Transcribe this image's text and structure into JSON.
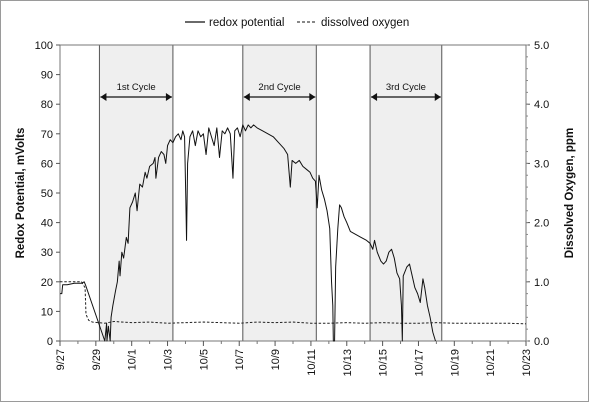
{
  "chart_data": {
    "type": "line",
    "title": "",
    "legend": {
      "placement": "top-center",
      "entries": [
        {
          "name": "redox potential",
          "style": "solid"
        },
        {
          "name": "dissolved oxygen",
          "style": "dashed"
        }
      ]
    },
    "x_axis": {
      "unit": "day",
      "range": [
        0,
        26
      ],
      "tick_values": [
        0,
        2,
        4,
        6,
        8,
        10,
        12,
        14,
        16,
        18,
        20,
        22,
        24,
        26
      ],
      "tick_labels": [
        "9/27",
        "9/29",
        "10/1",
        "10/3",
        "10/5",
        "10/7",
        "10/9",
        "10/11",
        "10/13",
        "10/15",
        "10/17",
        "10/19",
        "10/21",
        "10/23"
      ]
    },
    "y_left": {
      "label": "Redox Potential, mVolts",
      "range": [
        0,
        100
      ],
      "tick_labels": [
        "0",
        "10",
        "20",
        "30",
        "40",
        "50",
        "60",
        "70",
        "80",
        "90",
        "100"
      ]
    },
    "y_right": {
      "label": "Dissolved Oxygen, ppm",
      "range": [
        0,
        5
      ],
      "tick_labels": [
        "0.0",
        "1.0",
        "2.0",
        "3.0",
        "4.0",
        "5.0"
      ]
    },
    "grid": false,
    "cycles": [
      {
        "label": "1st Cycle",
        "start": 2.2,
        "end": 6.3
      },
      {
        "label": "2nd Cycle",
        "start": 10.2,
        "end": 14.3
      },
      {
        "label": "3rd Cycle",
        "start": 17.3,
        "end": 21.3
      }
    ],
    "series": [
      {
        "name": "redox potential",
        "axis": "left",
        "points": [
          [
            0.0,
            16
          ],
          [
            0.1,
            16
          ],
          [
            0.15,
            19
          ],
          [
            0.4,
            19
          ],
          [
            0.8,
            19.5
          ],
          [
            1.2,
            19.5
          ],
          [
            1.35,
            20
          ],
          [
            1.42,
            19
          ],
          [
            2.5,
            0
          ],
          [
            2.6,
            6
          ],
          [
            2.62,
            0
          ],
          [
            2.7,
            5
          ],
          [
            2.8,
            0
          ],
          [
            2.85,
            8
          ],
          [
            2.95,
            12
          ],
          [
            3.1,
            17
          ],
          [
            3.2,
            20
          ],
          [
            3.3,
            27
          ],
          [
            3.35,
            22
          ],
          [
            3.45,
            30
          ],
          [
            3.55,
            28
          ],
          [
            3.7,
            35
          ],
          [
            3.8,
            33
          ],
          [
            3.9,
            45
          ],
          [
            4.05,
            47
          ],
          [
            4.2,
            50
          ],
          [
            4.3,
            44
          ],
          [
            4.45,
            53
          ],
          [
            4.6,
            52
          ],
          [
            4.75,
            57
          ],
          [
            4.85,
            55
          ],
          [
            5.0,
            59
          ],
          [
            5.2,
            60
          ],
          [
            5.3,
            62
          ],
          [
            5.35,
            55
          ],
          [
            5.5,
            62
          ],
          [
            5.65,
            64
          ],
          [
            5.8,
            63
          ],
          [
            5.9,
            60
          ],
          [
            6.0,
            66
          ],
          [
            6.15,
            68
          ],
          [
            6.3,
            67
          ],
          [
            6.45,
            69
          ],
          [
            6.6,
            70
          ],
          [
            6.75,
            68
          ],
          [
            6.85,
            71
          ],
          [
            6.95,
            69
          ],
          [
            7.02,
            48
          ],
          [
            7.06,
            34
          ],
          [
            7.12,
            60
          ],
          [
            7.25,
            69
          ],
          [
            7.4,
            71
          ],
          [
            7.55,
            66
          ],
          [
            7.7,
            71
          ],
          [
            7.85,
            69
          ],
          [
            8.0,
            70
          ],
          [
            8.15,
            63
          ],
          [
            8.3,
            72
          ],
          [
            8.45,
            69
          ],
          [
            8.6,
            66
          ],
          [
            8.75,
            72
          ],
          [
            8.9,
            62
          ],
          [
            9.05,
            71
          ],
          [
            9.2,
            70
          ],
          [
            9.35,
            72
          ],
          [
            9.5,
            70
          ],
          [
            9.65,
            55
          ],
          [
            9.75,
            71
          ],
          [
            9.9,
            72
          ],
          [
            10.05,
            69
          ],
          [
            10.2,
            73
          ],
          [
            10.35,
            71
          ],
          [
            10.5,
            73
          ],
          [
            10.65,
            72
          ],
          [
            10.8,
            73
          ],
          [
            11.0,
            72
          ],
          [
            11.3,
            71
          ],
          [
            11.6,
            70
          ],
          [
            11.9,
            69
          ],
          [
            12.2,
            67
          ],
          [
            12.5,
            65
          ],
          [
            12.7,
            63
          ],
          [
            12.85,
            52
          ],
          [
            12.95,
            61
          ],
          [
            13.15,
            60
          ],
          [
            13.35,
            61
          ],
          [
            13.55,
            59
          ],
          [
            13.75,
            58
          ],
          [
            13.95,
            57
          ],
          [
            14.1,
            55
          ],
          [
            14.25,
            54
          ],
          [
            14.35,
            45
          ],
          [
            14.45,
            56
          ],
          [
            14.6,
            51
          ],
          [
            14.75,
            48
          ],
          [
            14.9,
            44
          ],
          [
            15.05,
            38
          ],
          [
            15.15,
            20
          ],
          [
            15.22,
            12
          ],
          [
            15.25,
            0
          ],
          [
            15.32,
            0
          ],
          [
            15.38,
            25
          ],
          [
            15.5,
            38
          ],
          [
            15.6,
            46
          ],
          [
            15.7,
            45
          ],
          [
            15.85,
            42
          ],
          [
            16.0,
            40
          ],
          [
            16.2,
            37
          ],
          [
            16.5,
            36
          ],
          [
            16.8,
            35
          ],
          [
            17.1,
            34
          ],
          [
            17.3,
            33
          ],
          [
            17.45,
            31
          ],
          [
            17.55,
            34
          ],
          [
            17.7,
            30
          ],
          [
            17.9,
            27
          ],
          [
            18.05,
            26
          ],
          [
            18.2,
            27
          ],
          [
            18.35,
            30
          ],
          [
            18.5,
            31
          ],
          [
            18.65,
            28
          ],
          [
            18.8,
            23
          ],
          [
            18.95,
            21
          ],
          [
            19.05,
            12
          ],
          [
            19.1,
            0
          ],
          [
            19.15,
            22
          ],
          [
            19.35,
            25
          ],
          [
            19.5,
            26
          ],
          [
            19.65,
            22
          ],
          [
            19.8,
            18
          ],
          [
            19.95,
            16
          ],
          [
            20.1,
            13
          ],
          [
            20.25,
            21
          ],
          [
            20.35,
            18
          ],
          [
            20.5,
            12
          ],
          [
            20.65,
            8
          ],
          [
            20.8,
            3
          ],
          [
            20.95,
            0
          ]
        ]
      },
      {
        "name": "dissolved oxygen",
        "axis": "right",
        "points": [
          [
            0.0,
            1.0
          ],
          [
            1.2,
            1.0
          ],
          [
            1.4,
            0.9
          ],
          [
            1.45,
            0.45
          ],
          [
            1.6,
            0.35
          ],
          [
            1.8,
            0.32
          ],
          [
            2.5,
            0.3
          ],
          [
            3.0,
            0.33
          ],
          [
            4.0,
            0.31
          ],
          [
            5.0,
            0.32
          ],
          [
            6.0,
            0.3
          ],
          [
            7.0,
            0.31
          ],
          [
            8.0,
            0.32
          ],
          [
            9.0,
            0.31
          ],
          [
            10.0,
            0.3
          ],
          [
            11.0,
            0.32
          ],
          [
            12.0,
            0.31
          ],
          [
            13.0,
            0.32
          ],
          [
            14.0,
            0.3
          ],
          [
            15.0,
            0.3
          ],
          [
            16.0,
            0.31
          ],
          [
            17.0,
            0.3
          ],
          [
            18.0,
            0.31
          ],
          [
            19.0,
            0.3
          ],
          [
            20.0,
            0.3
          ],
          [
            21.0,
            0.31
          ],
          [
            22.0,
            0.3
          ],
          [
            23.0,
            0.3
          ],
          [
            24.0,
            0.3
          ],
          [
            25.0,
            0.3
          ],
          [
            26.0,
            0.29
          ]
        ]
      }
    ]
  }
}
